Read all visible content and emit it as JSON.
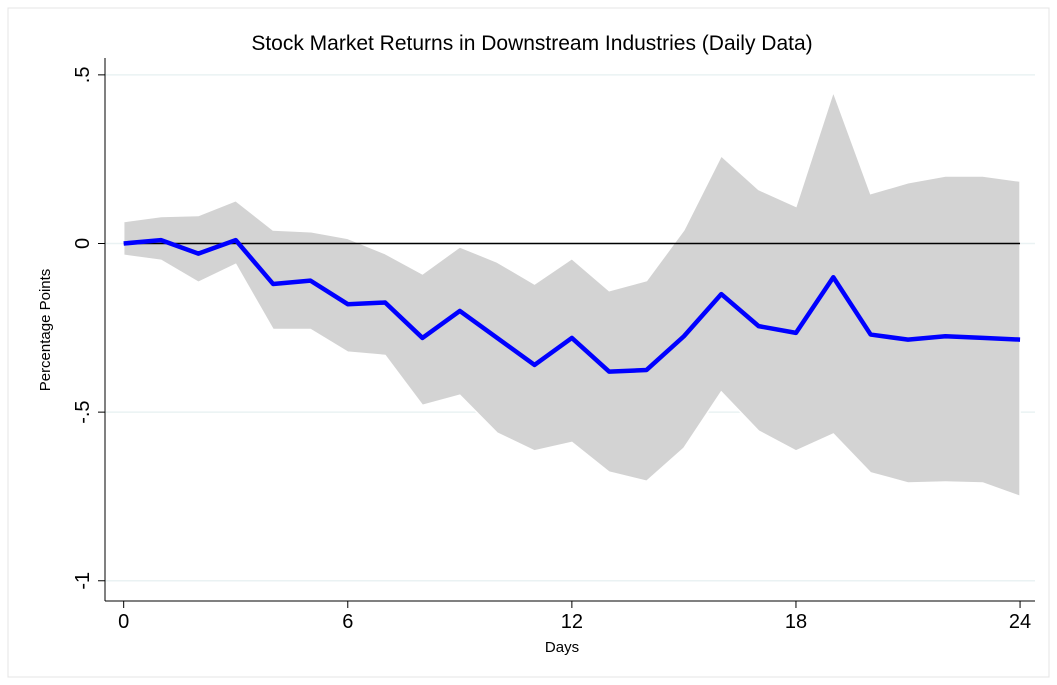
{
  "chart_data": {
    "type": "line",
    "title": "Stock Market Returns in Downstream Industries (Daily Data)",
    "x_label": "Days",
    "y_label": "Percentage Points",
    "x": [
      0,
      1,
      2,
      3,
      4,
      5,
      6,
      7,
      8,
      9,
      10,
      11,
      12,
      13,
      14,
      15,
      16,
      17,
      18,
      19,
      20,
      21,
      22,
      23,
      24
    ],
    "series": [
      {
        "color": "#0000ff",
        "values": [
          0,
          0.01,
          -0.03,
          0.01,
          -0.12,
          -0.11,
          -0.18,
          -0.175,
          -0.28,
          -0.2,
          -0.28,
          -0.36,
          -0.28,
          -0.38,
          -0.375,
          -0.275,
          -0.15,
          -0.245,
          -0.265,
          -0.1,
          -0.27,
          -0.285,
          -0.275,
          -0.28,
          -0.285
        ]
      }
    ],
    "band": {
      "color": "#d3d3d3",
      "upper": [
        0.065,
        0.08,
        0.083,
        0.127,
        0.04,
        0.035,
        0.015,
        -0.03,
        -0.09,
        -0.01,
        -0.055,
        -0.12,
        -0.045,
        -0.14,
        -0.11,
        0.04,
        0.26,
        0.16,
        0.11,
        0.45,
        0.148,
        0.18,
        0.2,
        0.2,
        0.185
      ],
      "lower": [
        -0.035,
        -0.05,
        -0.115,
        -0.062,
        -0.255,
        -0.255,
        -0.322,
        -0.332,
        -0.48,
        -0.45,
        -0.562,
        -0.615,
        -0.59,
        -0.678,
        -0.705,
        -0.607,
        -0.44,
        -0.556,
        -0.615,
        -0.565,
        -0.68,
        -0.71,
        -0.707,
        -0.71,
        -0.75
      ]
    },
    "reference_line": 0,
    "xlim": [
      -0.5,
      24.4
    ],
    "ylim": [
      -1.06,
      0.55
    ],
    "xticks": [
      0,
      6,
      12,
      18,
      24
    ],
    "yticks": [
      {
        "value": 0.5,
        "label": ".5"
      },
      0,
      {
        "value": -0.5,
        "label": "-.5"
      },
      -1
    ],
    "grid": true
  }
}
